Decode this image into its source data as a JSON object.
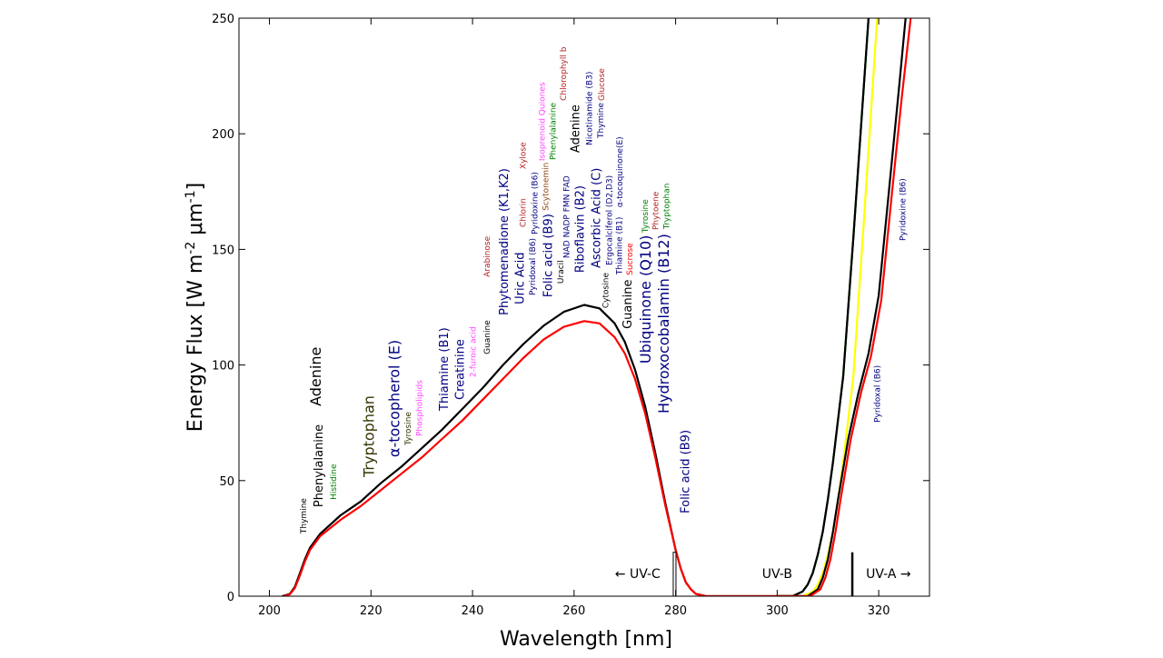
{
  "chart_data": {
    "type": "line",
    "title": "",
    "xlabel": "Wavelength [nm]",
    "ylabel_parts": [
      "Energy Flux [W m",
      "-2",
      " μm",
      "-1",
      "]"
    ],
    "xlim": [
      194,
      330
    ],
    "ylim": [
      0,
      250
    ],
    "xticks": [
      200,
      220,
      240,
      260,
      280,
      300,
      320
    ],
    "yticks": [
      0,
      50,
      100,
      150,
      200,
      250
    ],
    "grid": false,
    "series": [
      {
        "color": "#000000",
        "points": [
          [
            202.5,
            0
          ],
          [
            204,
            1
          ],
          [
            205,
            4
          ],
          [
            206,
            10
          ],
          [
            207,
            16
          ],
          [
            208,
            21
          ],
          [
            210,
            27
          ],
          [
            214,
            35
          ],
          [
            218,
            41
          ],
          [
            222,
            49
          ],
          [
            226,
            56
          ],
          [
            230,
            64
          ],
          [
            234,
            72
          ],
          [
            238,
            81
          ],
          [
            242,
            90
          ],
          [
            246,
            100
          ],
          [
            250,
            109
          ],
          [
            254,
            117
          ],
          [
            258,
            123
          ],
          [
            262,
            126
          ],
          [
            265,
            124.5
          ],
          [
            268,
            118
          ],
          [
            270,
            110
          ],
          [
            272,
            98
          ],
          [
            274,
            82
          ],
          [
            276,
            62
          ],
          [
            278,
            40
          ],
          [
            280,
            20
          ],
          [
            281,
            12
          ],
          [
            282,
            6
          ],
          [
            283,
            3
          ],
          [
            284,
            1
          ],
          [
            286,
            0
          ],
          [
            306,
            0
          ]
        ]
      },
      {
        "color": "#ff0000",
        "points": [
          [
            202.8,
            0
          ],
          [
            204,
            0.8
          ],
          [
            205,
            3.5
          ],
          [
            206,
            9
          ],
          [
            207,
            15
          ],
          [
            208,
            20
          ],
          [
            210,
            26
          ],
          [
            214,
            33
          ],
          [
            218,
            39
          ],
          [
            222,
            46
          ],
          [
            226,
            53
          ],
          [
            230,
            60
          ],
          [
            234,
            68
          ],
          [
            238,
            76
          ],
          [
            242,
            85
          ],
          [
            246,
            94
          ],
          [
            250,
            103
          ],
          [
            254,
            111
          ],
          [
            258,
            116.5
          ],
          [
            262,
            119
          ],
          [
            265,
            118
          ],
          [
            268,
            112
          ],
          [
            270,
            105
          ],
          [
            272,
            94
          ],
          [
            274,
            79
          ],
          [
            276,
            60
          ],
          [
            278,
            39
          ],
          [
            280,
            20
          ],
          [
            281,
            12
          ],
          [
            282,
            6
          ],
          [
            283,
            3
          ],
          [
            284,
            1
          ],
          [
            286,
            0
          ],
          [
            306,
            0
          ]
        ]
      },
      {
        "color": "#008000",
        "points": [
          [
            300,
            0
          ],
          [
            303,
            0
          ],
          [
            305,
            2
          ],
          [
            306,
            5
          ],
          [
            307,
            10
          ],
          [
            308,
            18
          ],
          [
            309,
            28
          ],
          [
            310,
            42
          ],
          [
            311,
            58
          ],
          [
            313,
            95
          ],
          [
            315,
            155
          ],
          [
            318,
            250
          ],
          [
            318.5,
            265
          ]
        ]
      },
      {
        "color": "#000000",
        "points": [
          [
            300,
            0
          ],
          [
            303,
            0
          ],
          [
            305,
            2
          ],
          [
            306,
            5
          ],
          [
            307,
            10
          ],
          [
            308,
            18
          ],
          [
            309,
            28
          ],
          [
            310,
            42
          ],
          [
            311,
            58
          ],
          [
            313,
            95
          ],
          [
            315,
            155
          ],
          [
            318,
            250
          ],
          [
            318.5,
            265
          ]
        ]
      },
      {
        "color": "#ffff00",
        "points": [
          [
            300,
            0
          ],
          [
            305,
            0
          ],
          [
            307,
            2
          ],
          [
            308,
            5
          ],
          [
            309,
            10
          ],
          [
            310,
            18
          ],
          [
            311,
            28
          ],
          [
            312,
            42
          ],
          [
            313,
            58
          ],
          [
            315,
            95
          ],
          [
            317,
            160
          ],
          [
            319.7,
            250
          ],
          [
            320.2,
            265
          ]
        ]
      },
      {
        "color": "#000000",
        "points": [
          [
            300,
            0
          ],
          [
            306,
            0
          ],
          [
            308,
            3
          ],
          [
            309,
            8
          ],
          [
            310,
            16
          ],
          [
            311,
            28
          ],
          [
            312,
            42
          ],
          [
            314,
            68
          ],
          [
            316,
            88
          ],
          [
            318,
            105
          ],
          [
            320,
            130
          ],
          [
            322,
            175
          ],
          [
            324,
            220
          ],
          [
            325.3,
            250
          ],
          [
            325.8,
            265
          ]
        ]
      },
      {
        "color": "#ff0000",
        "points": [
          [
            300,
            0
          ],
          [
            306.5,
            0
          ],
          [
            308.5,
            3
          ],
          [
            309.5,
            8
          ],
          [
            310.5,
            16
          ],
          [
            311.5,
            28
          ],
          [
            312.5,
            42
          ],
          [
            314.5,
            68
          ],
          [
            316.5,
            88
          ],
          [
            318.5,
            104
          ],
          [
            320.5,
            128
          ],
          [
            322.5,
            172
          ],
          [
            324.5,
            215
          ],
          [
            326.3,
            250
          ],
          [
            326.8,
            265
          ]
        ]
      }
    ],
    "markers": [
      {
        "x": 279.8,
        "y": 19,
        "style": "open"
      },
      {
        "x": 314.8,
        "y": 19,
        "style": "solid"
      }
    ],
    "bands": [
      {
        "label": "UV-C",
        "arrow": "←",
        "x": 277
      },
      {
        "label": "UV-B",
        "arrow": "",
        "x": 300
      },
      {
        "label": "UV-A",
        "arrow": "→",
        "x": 317.5
      }
    ],
    "annotations": [
      {
        "text": "Thymine",
        "x": 206.8,
        "y": 27.1,
        "color": "#000000"
      },
      {
        "text": "Phenylalanine",
        "x": 209.8,
        "y": 38.5,
        "color": "#000000"
      },
      {
        "text": "Histidine",
        "x": 212.7,
        "y": 41.7,
        "color": "#008000"
      },
      {
        "text": "Adenine",
        "x": 209.3,
        "y": 82.2,
        "color": "#000000"
      },
      {
        "text": "Tryptophan",
        "x": 219.8,
        "y": 51.5,
        "color": "#333300"
      },
      {
        "text": "α-tocopherol (E)",
        "x": 224.8,
        "y": 60.1,
        "color": "#000080"
      },
      {
        "text": "Tyrosine",
        "x": 227.0,
        "y": 65.3,
        "color": "#333300"
      },
      {
        "text": "Phospholipids",
        "x": 229.6,
        "y": 69.2,
        "color": "#ff44ff"
      },
      {
        "text": "Thiamine (B1)",
        "x": 234.5,
        "y": 80.2,
        "color": "#000080"
      },
      {
        "text": "Creatinine",
        "x": 236.6,
        "y": 84.9,
        "color": "#000080"
      },
      {
        "text": "2-furoic acid",
        "x": 239.8,
        "y": 94.7,
        "color": "#ff44ff"
      },
      {
        "text": "Guanine",
        "x": 242.9,
        "y": 104.6,
        "color": "#000000"
      },
      {
        "text": "Arabinose",
        "x": 242.9,
        "y": 138.0,
        "color": "#b22222"
      },
      {
        "text": "Phytomenadione (K1,K2)",
        "x": 246.3,
        "y": 121.5,
        "color": "#000080"
      },
      {
        "text": "Uric Acid",
        "x": 248.4,
        "y": 126.2,
        "color": "#000080"
      },
      {
        "text": "Pyridoxal (B6)",
        "x": 250.5,
        "y": 130.1,
        "color": "#000080"
      },
      {
        "text": "Pyridoxine (B6)",
        "x": 252.3,
        "y": 132.9,
        "color": "#000080"
      },
      {
        "text": "Folic acid (B9)",
        "x": 255.0,
        "y": 129.3,
        "color": "#000080"
      },
      {
        "text": "Uracil",
        "x": 257.1,
        "y": 135.2,
        "color": "#000000"
      },
      {
        "text": "NAD NADP FMN FAD",
        "x": 259.3,
        "y": 139.9,
        "color": "#000080"
      },
      {
        "text": "Chlorin",
        "x": 250.0,
        "y": 159.6,
        "color": "#b22222"
      },
      {
        "text": "Scytonemin",
        "x": 252.0,
        "y": 166.7,
        "color": "#8b4513"
      },
      {
        "text": "Xylose",
        "x": 250.0,
        "y": 184.7,
        "color": "#b22222"
      },
      {
        "text": "Isoprenoid Quiones",
        "x": 253.8,
        "y": 180.4,
        "color": "#ff44ff"
      },
      {
        "text": "Phenylalanine",
        "x": 255.9,
        "y": 187.1,
        "color": "#008000"
      },
      {
        "text": "Chlorophyll b",
        "x": 258.0,
        "y": 184.4,
        "color": "#b22222"
      },
      {
        "text": "Adenine",
        "x": 260.4,
        "y": 191.8,
        "color": "#000000"
      },
      {
        "text": "Nicotinamide (B3)",
        "x": 262.7,
        "y": 195.0,
        "color": "#000080"
      },
      {
        "text": "Thymine",
        "x": 263.9,
        "y": 198.1,
        "color": "#000080"
      },
      {
        "text": "Glucose",
        "x": 265.5,
        "y": 204.8,
        "color": "#b22222"
      },
      {
        "text": "Riboflavin (B2)",
        "x": 261.3,
        "y": 139.9,
        "color": "#000080"
      },
      {
        "text": "Ascorbic Acid (C)",
        "x": 263.4,
        "y": 141.9,
        "color": "#000080"
      },
      {
        "text": "Ergocalciferol (D2,D3)",
        "x": 265.2,
        "y": 143.1,
        "color": "#000080"
      },
      {
        "text": "α-tocoquinone(E)",
        "x": 266.6,
        "y": 168.2,
        "color": "#000080"
      },
      {
        "text": "Cytosine",
        "x": 266.3,
        "y": 134.0,
        "color": "#000000"
      },
      {
        "text": "Thiamine (B1)",
        "x": 268.6,
        "y": 128.1,
        "color": "#000080"
      },
      {
        "text": "Sucrose",
        "x": 270.0,
        "y": 126.2,
        "color": "#ff0000"
      },
      {
        "text": "Guanine",
        "x": 272.1,
        "y": 115.6,
        "color": "#000000"
      },
      {
        "text": "Ubiquinone (Q10)",
        "x": 274.3,
        "y": 100.6,
        "color": "#000080"
      },
      {
        "text": "Hydroxocobalamin (B12)",
        "x": 276.8,
        "y": 79.0,
        "color": "#000080"
      },
      {
        "text": "Tyrosine",
        "x": 274.1,
        "y": 150.9,
        "color": "#008000"
      },
      {
        "text": "Phytoene",
        "x": 275.4,
        "y": 153.7,
        "color": "#b22222"
      },
      {
        "text": "Tryptophan",
        "x": 277.9,
        "y": 150.9,
        "color": "#008000"
      },
      {
        "text": "Folic acid (B9)",
        "x": 282.0,
        "y": 35.8,
        "color": "#000080"
      },
      {
        "text": "Pyridoxal (B6)",
        "x": 319.8,
        "y": 75.1,
        "color": "#000080"
      },
      {
        "text": "Pyridoxine (B6)",
        "x": 324.8,
        "y": 153.7,
        "color": "#000080"
      }
    ]
  }
}
